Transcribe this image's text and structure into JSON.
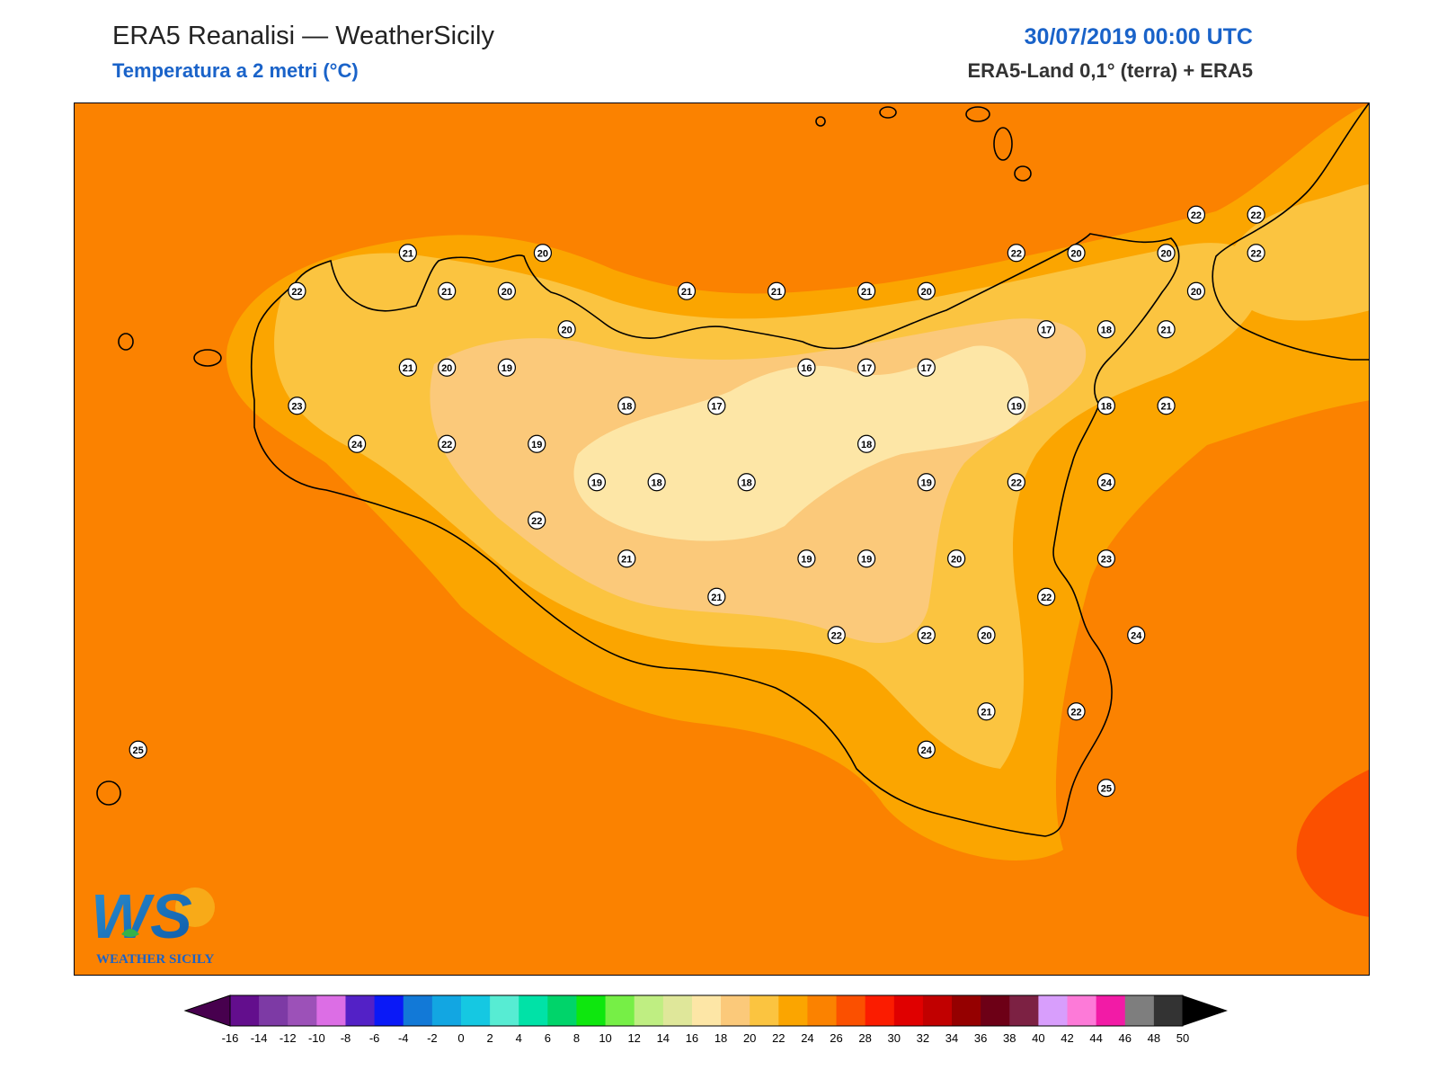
{
  "header": {
    "title": "ERA5 Reanalisi — WeatherSicily",
    "subtitle": "Temperatura a 2 metri (°C)",
    "datetime": "30/07/2019 00:00 UTC",
    "source": "ERA5-Land 0,1° (terra) + ERA5"
  },
  "logo": {
    "initials": "WS",
    "text": "WEATHER SICILY"
  },
  "colors": {
    "t16": "#fde6a6",
    "t18": "#fbc97a",
    "t20": "#fbc440",
    "t22": "#fba500",
    "t24": "#fb8200",
    "t26": "#fb5000",
    "coast": "#000000"
  },
  "stations": [
    {
      "v": "21",
      "lon": 12.91,
      "lat": 38.05
    },
    {
      "v": "20",
      "lon": 13.36,
      "lat": 38.05
    },
    {
      "v": "22",
      "lon": 12.54,
      "lat": 37.95
    },
    {
      "v": "21",
      "lon": 13.04,
      "lat": 37.95
    },
    {
      "v": "20",
      "lon": 13.24,
      "lat": 37.95
    },
    {
      "v": "20",
      "lon": 13.44,
      "lat": 37.85
    },
    {
      "v": "21",
      "lon": 13.84,
      "lat": 37.95
    },
    {
      "v": "21",
      "lon": 14.14,
      "lat": 37.95
    },
    {
      "v": "21",
      "lon": 14.44,
      "lat": 37.95
    },
    {
      "v": "20",
      "lon": 14.64,
      "lat": 37.95
    },
    {
      "v": "22",
      "lon": 14.94,
      "lat": 38.05
    },
    {
      "v": "20",
      "lon": 15.14,
      "lat": 38.05
    },
    {
      "v": "20",
      "lon": 15.44,
      "lat": 38.05
    },
    {
      "v": "22",
      "lon": 15.54,
      "lat": 38.15
    },
    {
      "v": "22",
      "lon": 15.74,
      "lat": 38.15
    },
    {
      "v": "22",
      "lon": 15.74,
      "lat": 38.05
    },
    {
      "v": "20",
      "lon": 15.54,
      "lat": 37.95
    },
    {
      "v": "21",
      "lon": 12.91,
      "lat": 37.75
    },
    {
      "v": "20",
      "lon": 13.04,
      "lat": 37.75
    },
    {
      "v": "19",
      "lon": 13.24,
      "lat": 37.75
    },
    {
      "v": "16",
      "lon": 14.24,
      "lat": 37.75
    },
    {
      "v": "17",
      "lon": 14.44,
      "lat": 37.75
    },
    {
      "v": "17",
      "lon": 14.64,
      "lat": 37.75
    },
    {
      "v": "17",
      "lon": 15.04,
      "lat": 37.85
    },
    {
      "v": "18",
      "lon": 15.24,
      "lat": 37.85
    },
    {
      "v": "21",
      "lon": 15.44,
      "lat": 37.85
    },
    {
      "v": "23",
      "lon": 12.54,
      "lat": 37.65
    },
    {
      "v": "18",
      "lon": 13.64,
      "lat": 37.65
    },
    {
      "v": "17",
      "lon": 13.94,
      "lat": 37.65
    },
    {
      "v": "19",
      "lon": 14.94,
      "lat": 37.65
    },
    {
      "v": "18",
      "lon": 15.24,
      "lat": 37.65
    },
    {
      "v": "21",
      "lon": 15.44,
      "lat": 37.65
    },
    {
      "v": "24",
      "lon": 12.74,
      "lat": 37.55
    },
    {
      "v": "22",
      "lon": 13.04,
      "lat": 37.55
    },
    {
      "v": "19",
      "lon": 13.34,
      "lat": 37.55
    },
    {
      "v": "18",
      "lon": 14.44,
      "lat": 37.55
    },
    {
      "v": "19",
      "lon": 13.54,
      "lat": 37.45
    },
    {
      "v": "18",
      "lon": 13.74,
      "lat": 37.45
    },
    {
      "v": "18",
      "lon": 14.04,
      "lat": 37.45
    },
    {
      "v": "19",
      "lon": 14.64,
      "lat": 37.45
    },
    {
      "v": "22",
      "lon": 14.94,
      "lat": 37.45
    },
    {
      "v": "24",
      "lon": 15.24,
      "lat": 37.45
    },
    {
      "v": "22",
      "lon": 13.34,
      "lat": 37.35
    },
    {
      "v": "21",
      "lon": 13.64,
      "lat": 37.25
    },
    {
      "v": "19",
      "lon": 14.24,
      "lat": 37.25
    },
    {
      "v": "19",
      "lon": 14.44,
      "lat": 37.25
    },
    {
      "v": "20",
      "lon": 14.74,
      "lat": 37.25
    },
    {
      "v": "23",
      "lon": 15.24,
      "lat": 37.25
    },
    {
      "v": "21",
      "lon": 13.94,
      "lat": 37.15
    },
    {
      "v": "22",
      "lon": 15.04,
      "lat": 37.15
    },
    {
      "v": "22",
      "lon": 14.34,
      "lat": 37.05
    },
    {
      "v": "22",
      "lon": 14.64,
      "lat": 37.05
    },
    {
      "v": "20",
      "lon": 14.84,
      "lat": 37.05
    },
    {
      "v": "24",
      "lon": 15.34,
      "lat": 37.05
    },
    {
      "v": "21",
      "lon": 14.84,
      "lat": 36.85
    },
    {
      "v": "22",
      "lon": 15.14,
      "lat": 36.85
    },
    {
      "v": "25",
      "lon": 12.01,
      "lat": 36.75
    },
    {
      "v": "24",
      "lon": 14.64,
      "lat": 36.75
    },
    {
      "v": "25",
      "lon": 15.24,
      "lat": 36.65
    }
  ],
  "colorbar": {
    "ticks": [
      "-16",
      "-14",
      "-12",
      "-10",
      "-8",
      "-6",
      "-4",
      "-2",
      "0",
      "2",
      "4",
      "6",
      "8",
      "10",
      "12",
      "14",
      "16",
      "18",
      "20",
      "22",
      "24",
      "26",
      "28",
      "30",
      "32",
      "34",
      "36",
      "38",
      "40",
      "42",
      "44",
      "46",
      "48",
      "50"
    ],
    "colors": [
      "#47004e",
      "#630e8d",
      "#7d3aa5",
      "#9c51b8",
      "#dc6ee5",
      "#5321c6",
      "#0a19f7",
      "#1279d7",
      "#12a6e2",
      "#15c8e2",
      "#57ecd3",
      "#00e2a7",
      "#00d46a",
      "#0ee70e",
      "#76ef46",
      "#bfee82",
      "#dfe79a",
      "#fde6a6",
      "#fbc97a",
      "#fbc440",
      "#fba500",
      "#fb8200",
      "#fb5000",
      "#fb1c00",
      "#e00000",
      "#c10000",
      "#950000",
      "#6d0016",
      "#7c2143",
      "#d89efc",
      "#fd7ad8",
      "#f21ba6",
      "#7e7e7e",
      "#333333"
    ]
  }
}
